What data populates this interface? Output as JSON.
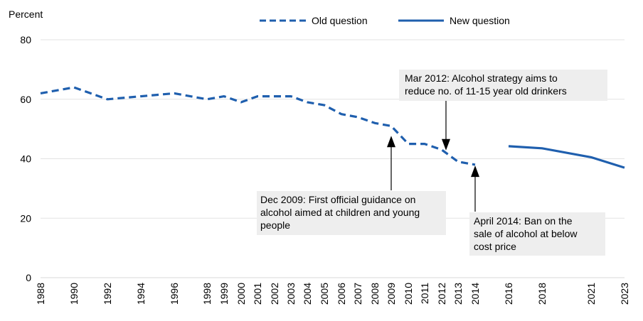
{
  "chart_data": {
    "type": "line",
    "ylabel": "Percent",
    "ylim": [
      0,
      80
    ],
    "yticks": [
      0,
      20,
      40,
      60,
      80
    ],
    "grid": true,
    "legend_position": "top",
    "x_tick_labels": [
      "1988",
      "1990",
      "1992",
      "1994",
      "1996",
      "1998",
      "1999",
      "2000",
      "2001",
      "2002",
      "2003",
      "2004",
      "2005",
      "2006",
      "2007",
      "2008",
      "2009",
      "2010",
      "2011",
      "2012",
      "2013",
      "2014",
      "2016",
      "2018",
      "2021",
      "2023"
    ],
    "series": [
      {
        "name": "Old question",
        "style": "dashed",
        "color": "#1f5fae",
        "x": [
          1988,
          1990,
          1992,
          1994,
          1996,
          1998,
          1999,
          2000,
          2001,
          2002,
          2003,
          2004,
          2005,
          2006,
          2007,
          2008,
          2009,
          2010,
          2011,
          2012,
          2013,
          2014
        ],
        "y": [
          62,
          64,
          60,
          61,
          62,
          60,
          61,
          59,
          61,
          61,
          61,
          59,
          58,
          55,
          54,
          52,
          51,
          45,
          45,
          43,
          39,
          38
        ]
      },
      {
        "name": "New question",
        "style": "solid",
        "color": "#1f5fae",
        "x": [
          2016,
          2018,
          2021,
          2023
        ],
        "y": [
          44.2,
          43.5,
          40.5,
          37
        ]
      }
    ],
    "annotations": [
      {
        "lines": [
          "Mar 2012: Alcohol strategy aims to",
          "reduce no. of 11-15 year old drinkers"
        ],
        "target_year": 2012.2,
        "target_value": 44
      },
      {
        "lines": [
          "Dec 2009: First  official guidance on",
          "alcohol aimed at children and young",
          "people"
        ],
        "target_year": 2009,
        "target_value": 47
      },
      {
        "lines": [
          "April 2014: Ban on the",
          "sale of alcohol at below",
          "cost price"
        ],
        "target_year": 2014,
        "target_value": 37
      }
    ]
  }
}
